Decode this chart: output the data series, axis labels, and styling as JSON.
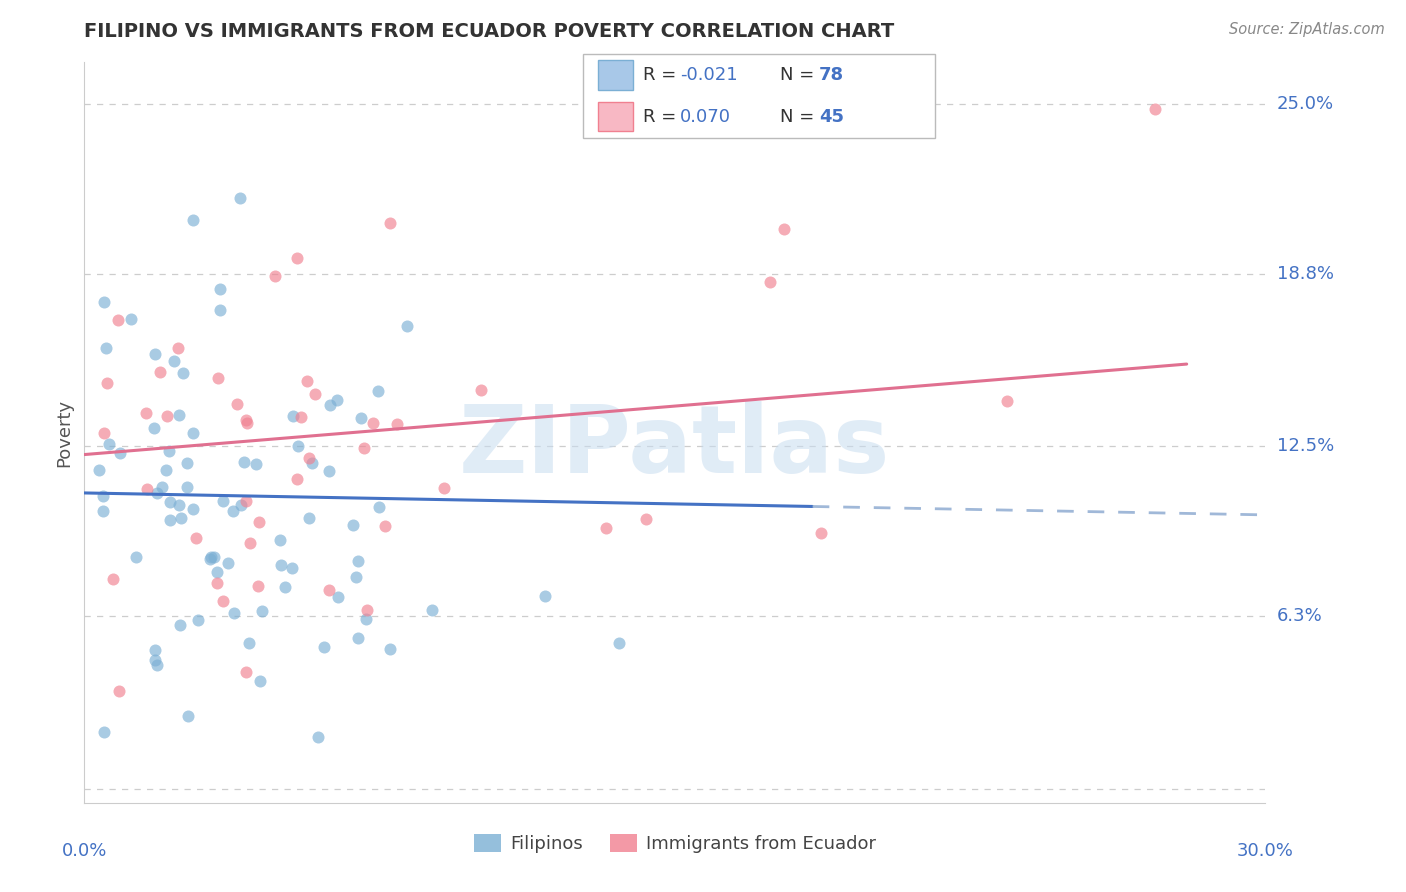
{
  "title": "FILIPINO VS IMMIGRANTS FROM ECUADOR POVERTY CORRELATION CHART",
  "source": "Source: ZipAtlas.com",
  "ylabel": "Poverty",
  "yticks": [
    0.0,
    0.063,
    0.125,
    0.188,
    0.25
  ],
  "ytick_labels": [
    "",
    "6.3%",
    "12.5%",
    "18.8%",
    "25.0%"
  ],
  "xlim": [
    0.0,
    0.3
  ],
  "ylim": [
    -0.005,
    0.265
  ],
  "watermark": "ZIPatlas",
  "bottom_legend": [
    "Filipinos",
    "Immigrants from Ecuador"
  ],
  "filipino_color": "#7bafd4",
  "ecuador_color": "#f08090",
  "filipino_N": 78,
  "ecuador_N": 45,
  "axis_label_color": "#4472c4",
  "grid_color": "#c8c8c8",
  "title_color": "#333333",
  "source_color": "#888888",
  "legend_r1_text": "R = -0.021",
  "legend_r2_text": "R =  0.070",
  "legend_n1": "78",
  "legend_n2": "45",
  "fil_line_color": "#4472c4",
  "ecu_line_color": "#e07090",
  "fil_line_solid_end": 0.185,
  "fil_line_start_y": 0.108,
  "fil_line_end_y": 0.1,
  "ecu_line_start_y": 0.122,
  "ecu_line_end_y": 0.155
}
